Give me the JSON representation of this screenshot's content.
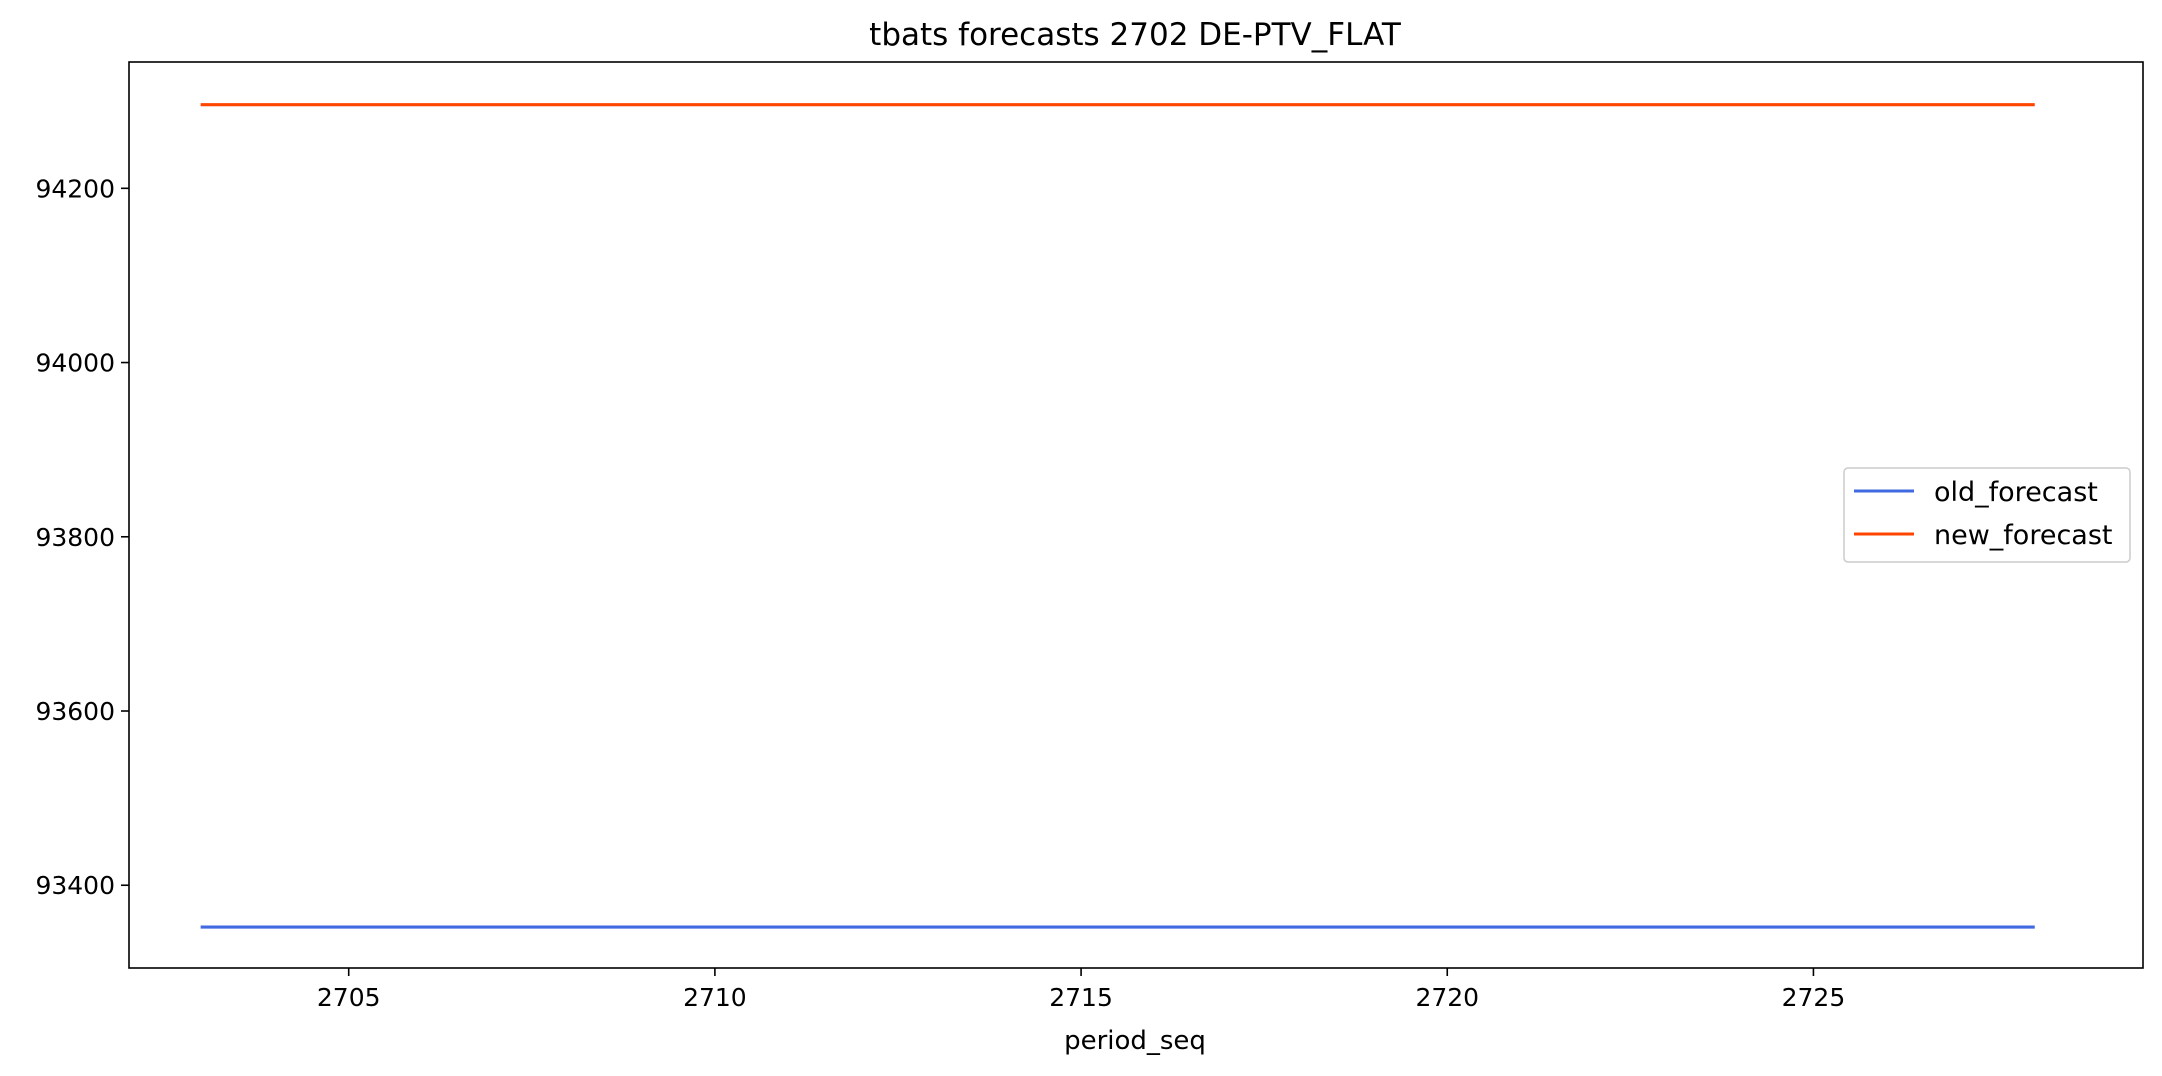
{
  "chart_data": {
    "type": "line",
    "title": "tbats forecasts 2702 DE-PTV_FLAT",
    "xlabel": "period_seq",
    "ylabel": "",
    "xlim": [
      2702,
      2729.5
    ],
    "ylim": [
      93305,
      94345
    ],
    "x_ticks": [
      2705,
      2710,
      2715,
      2720,
      2725
    ],
    "y_ticks": [
      93400,
      93600,
      93800,
      94000,
      94200
    ],
    "x_tick_labels": [
      "2705",
      "2710",
      "2715",
      "2720",
      "2725"
    ],
    "y_tick_labels": [
      "93400",
      "93600",
      "93800",
      "94000",
      "94200"
    ],
    "x": [
      2703,
      2704,
      2705,
      2706,
      2707,
      2708,
      2709,
      2710,
      2711,
      2712,
      2713,
      2714,
      2715,
      2716,
      2717,
      2718,
      2719,
      2720,
      2721,
      2722,
      2723,
      2724,
      2725,
      2726,
      2727,
      2728
    ],
    "series": [
      {
        "name": "old_forecast",
        "color": "#4169e1",
        "values": [
          93352,
          93352,
          93352,
          93352,
          93352,
          93352,
          93352,
          93352,
          93352,
          93352,
          93352,
          93352,
          93352,
          93352,
          93352,
          93352,
          93352,
          93352,
          93352,
          93352,
          93352,
          93352,
          93352,
          93352,
          93352,
          93352
        ]
      },
      {
        "name": "new_forecast",
        "color": "#ff4500",
        "values": [
          94296,
          94296,
          94296,
          94296,
          94296,
          94296,
          94296,
          94296,
          94296,
          94296,
          94296,
          94296,
          94296,
          94296,
          94296,
          94296,
          94296,
          94296,
          94296,
          94296,
          94296,
          94296,
          94296,
          94296,
          94296,
          94296
        ]
      }
    ],
    "grid": false,
    "legend_position": "center-right"
  }
}
